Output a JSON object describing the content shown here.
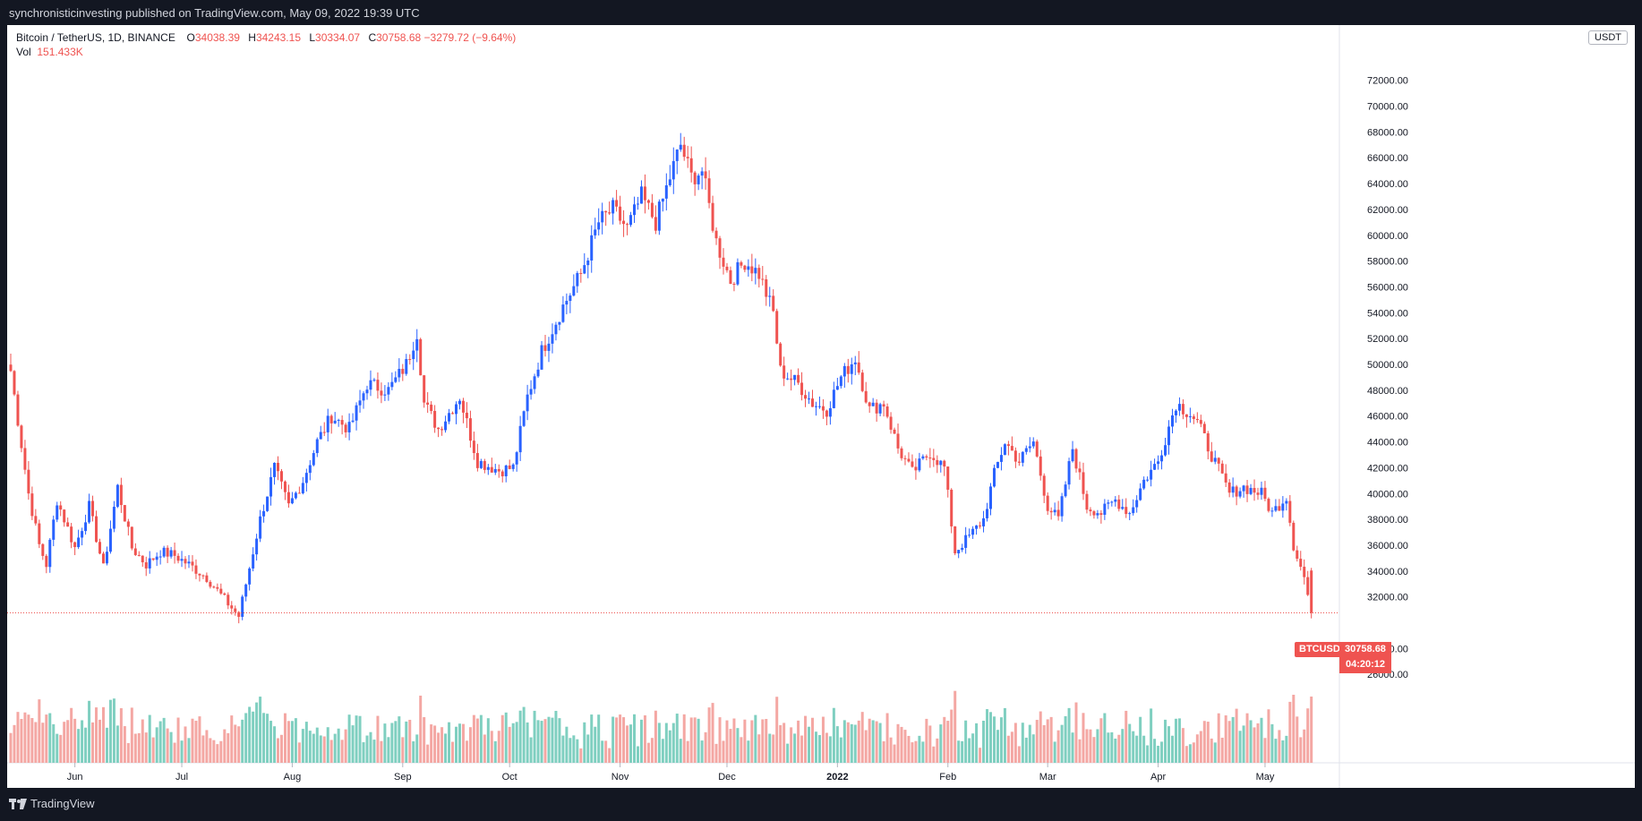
{
  "header": {
    "published": "synchronisticinvesting published on TradingView.com, May 09, 2022 19:39 UTC"
  },
  "legend": {
    "title": "Bitcoin / TetherUS, 1D, BINANCE",
    "open_label": "O",
    "open": "34038.39",
    "high_label": "H",
    "high": "34243.15",
    "low_label": "L",
    "low": "30334.07",
    "close_label": "C",
    "close": "30758.68",
    "change": "−3279.72 (−9.64%)",
    "vol_label": "Vol",
    "vol": "151.433K"
  },
  "axis": {
    "unit": "USDT"
  },
  "last_price": {
    "symbol": "BTCUSDT",
    "price": "30758.68",
    "countdown": "04:20:12"
  },
  "footer": {
    "brand": "TradingView",
    "logo_icon": "tradingview-logo-icon"
  },
  "colors": {
    "up": "#2962ff",
    "down": "#ef5350",
    "vol_up": "#7fcfc0",
    "vol_down": "#f4a7a3",
    "background": "#ffffff",
    "frame": "#131722"
  },
  "chart_data": {
    "type": "candlestick",
    "title": "Bitcoin / TetherUS, 1D, BINANCE",
    "y_unit": "USDT",
    "y_ticks": [
      26000,
      28000,
      32000,
      34000,
      36000,
      38000,
      40000,
      42000,
      44000,
      46000,
      48000,
      50000,
      52000,
      54000,
      56000,
      58000,
      60000,
      62000,
      64000,
      66000,
      68000,
      70000,
      72000
    ],
    "y_tick_labels": [
      "26000.00",
      "28000.00",
      "32000.00",
      "34000.00",
      "36000.00",
      "38000.00",
      "40000.00",
      "42000.00",
      "44000.00",
      "46000.00",
      "48000.00",
      "50000.00",
      "52000.00",
      "54000.00",
      "56000.00",
      "58000.00",
      "60000.00",
      "62000.00",
      "64000.00",
      "66000.00",
      "68000.00",
      "70000.00",
      "72000.00"
    ],
    "x_tick_labels": [
      {
        "label": "Jun",
        "day": 18
      },
      {
        "label": "Jul",
        "day": 48
      },
      {
        "label": "Aug",
        "day": 79
      },
      {
        "label": "Sep",
        "day": 110
      },
      {
        "label": "Oct",
        "day": 140
      },
      {
        "label": "Nov",
        "day": 171
      },
      {
        "label": "Dec",
        "day": 201
      },
      {
        "label": "2022",
        "day": 232
      },
      {
        "label": "Feb",
        "day": 263
      },
      {
        "label": "Mar",
        "day": 291
      },
      {
        "label": "Apr",
        "day": 322
      },
      {
        "label": "May",
        "day": 352
      }
    ],
    "series_anchors": [
      [
        0,
        49500
      ],
      [
        5,
        40000
      ],
      [
        8,
        36000
      ],
      [
        10,
        34500
      ],
      [
        13,
        39500
      ],
      [
        18,
        35800
      ],
      [
        22,
        39000
      ],
      [
        26,
        34200
      ],
      [
        30,
        40500
      ],
      [
        34,
        35800
      ],
      [
        38,
        34500
      ],
      [
        42,
        35500
      ],
      [
        46,
        35200
      ],
      [
        50,
        34500
      ],
      [
        55,
        33500
      ],
      [
        60,
        31800
      ],
      [
        64,
        30500
      ],
      [
        66,
        33000
      ],
      [
        70,
        38000
      ],
      [
        74,
        42000
      ],
      [
        78,
        39000
      ],
      [
        82,
        41000
      ],
      [
        86,
        44000
      ],
      [
        90,
        46000
      ],
      [
        95,
        45000
      ],
      [
        100,
        48500
      ],
      [
        106,
        48000
      ],
      [
        111,
        50000
      ],
      [
        114,
        52500
      ],
      [
        116,
        47000
      ],
      [
        120,
        45000
      ],
      [
        126,
        47500
      ],
      [
        131,
        42500
      ],
      [
        137,
        41800
      ],
      [
        141,
        42000
      ],
      [
        145,
        47500
      ],
      [
        149,
        51000
      ],
      [
        155,
        54500
      ],
      [
        160,
        57000
      ],
      [
        165,
        61000
      ],
      [
        169,
        62000
      ],
      [
        173,
        60500
      ],
      [
        177,
        63000
      ],
      [
        181,
        61000
      ],
      [
        185,
        64500
      ],
      [
        188,
        67000
      ],
      [
        191,
        64500
      ],
      [
        194,
        65000
      ],
      [
        198,
        59500
      ],
      [
        202,
        56500
      ],
      [
        206,
        58000
      ],
      [
        210,
        57000
      ],
      [
        214,
        54000
      ],
      [
        216,
        49500
      ],
      [
        221,
        48500
      ],
      [
        225,
        47000
      ],
      [
        229,
        46500
      ],
      [
        233,
        49000
      ],
      [
        237,
        50500
      ],
      [
        241,
        46500
      ],
      [
        245,
        47000
      ],
      [
        249,
        43500
      ],
      [
        253,
        41600
      ],
      [
        258,
        43200
      ],
      [
        262,
        42000
      ],
      [
        265,
        35500
      ],
      [
        270,
        37000
      ],
      [
        273,
        38000
      ],
      [
        276,
        41500
      ],
      [
        279,
        44000
      ],
      [
        283,
        42500
      ],
      [
        287,
        44000
      ],
      [
        291,
        39000
      ],
      [
        294,
        38000
      ],
      [
        298,
        43500
      ],
      [
        302,
        39000
      ],
      [
        306,
        38500
      ],
      [
        310,
        39500
      ],
      [
        314,
        38500
      ],
      [
        318,
        41000
      ],
      [
        322,
        42500
      ],
      [
        327,
        47000
      ],
      [
        331,
        46200
      ],
      [
        333,
        45500
      ],
      [
        337,
        43000
      ],
      [
        342,
        40000
      ],
      [
        346,
        40500
      ],
      [
        351,
        40000
      ],
      [
        354,
        38500
      ],
      [
        358,
        39800
      ],
      [
        360,
        36000
      ],
      [
        363,
        33500
      ],
      [
        365,
        30758.68
      ]
    ],
    "days": 366,
    "last_price": 30758.68
  }
}
